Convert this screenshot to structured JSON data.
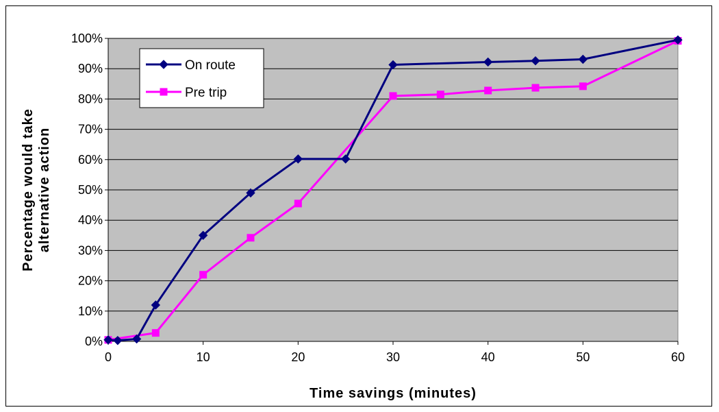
{
  "chart_data": {
    "type": "line",
    "title": "",
    "xlabel": "Time savings (minutes)",
    "ylabel_lines": [
      "Percentage would take",
      "alternative action"
    ],
    "xlim": [
      0,
      60
    ],
    "ylim": [
      0,
      100
    ],
    "x_ticks": [
      0,
      10,
      20,
      30,
      40,
      50,
      60
    ],
    "y_ticks": [
      0,
      10,
      20,
      30,
      40,
      50,
      60,
      70,
      80,
      90,
      100
    ],
    "y_tick_format": "percent",
    "grid": "horizontal",
    "plot_background": "#c0c0c0",
    "legend_position": "top-left",
    "series": [
      {
        "name": "On route",
        "color": "#000080",
        "marker": "diamond",
        "x": [
          0,
          1,
          3,
          5,
          10,
          15,
          20,
          25,
          30,
          40,
          45,
          50,
          60
        ],
        "values": [
          0.5,
          0.3,
          0.8,
          12,
          35,
          49,
          60.2,
          60.2,
          91.3,
          92.2,
          92.6,
          93.1,
          99.5
        ]
      },
      {
        "name": "Pre trip",
        "color": "#ff00ff",
        "marker": "square",
        "x": [
          0,
          5,
          10,
          15,
          20,
          30,
          35,
          40,
          45,
          50,
          60
        ],
        "values": [
          0.5,
          2.8,
          22,
          34.2,
          45.5,
          81,
          81.5,
          82.8,
          83.7,
          84.2,
          99.2
        ]
      }
    ]
  }
}
